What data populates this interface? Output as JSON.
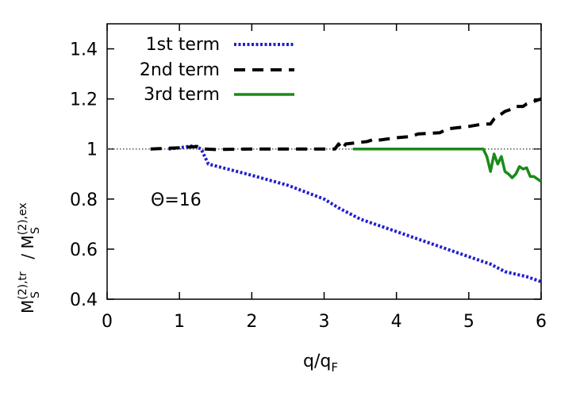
{
  "chart_data": {
    "type": "line",
    "title": "",
    "xlabel": "q/q",
    "xlabel_sub": "F",
    "ylabel": {
      "m1": "M",
      "sup1": "(2),tr",
      "sub1": "S",
      "sep": " / ",
      "m2": "M",
      "sup2": "(2),ex",
      "sub2": "S"
    },
    "annotation": "Θ=16",
    "xlim": [
      0,
      6
    ],
    "ylim": [
      0.4,
      1.5
    ],
    "xticks": [
      0,
      1,
      2,
      3,
      4,
      5,
      6
    ],
    "xtick_labels": [
      "0",
      "1",
      "2",
      "3",
      "4",
      "5",
      "6"
    ],
    "yticks": [
      0.4,
      0.6,
      0.8,
      1.0,
      1.2,
      1.4
    ],
    "ytick_labels": [
      "0.4",
      "0.6",
      "0.8",
      "1",
      "1.2",
      "1.4"
    ],
    "grid": false,
    "legend_position": "top-left",
    "reference_line": {
      "y": 1.0,
      "color": "#555555"
    },
    "series": [
      {
        "name": "1st term",
        "color": "#2020d0",
        "style": "dotted",
        "points": [
          [
            0.85,
            1.0
          ],
          [
            1.0,
            1.005
          ],
          [
            1.2,
            1.013
          ],
          [
            1.3,
            1.0
          ],
          [
            1.4,
            0.94
          ],
          [
            1.6,
            0.925
          ],
          [
            2.0,
            0.895
          ],
          [
            2.5,
            0.855
          ],
          [
            3.0,
            0.8
          ],
          [
            3.2,
            0.765
          ],
          [
            3.3,
            0.75
          ],
          [
            3.5,
            0.72
          ],
          [
            4.0,
            0.67
          ],
          [
            4.5,
            0.62
          ],
          [
            5.0,
            0.57
          ],
          [
            5.3,
            0.54
          ],
          [
            5.5,
            0.51
          ],
          [
            5.8,
            0.49
          ],
          [
            6.0,
            0.47
          ]
        ]
      },
      {
        "name": "2nd term",
        "color": "#000000",
        "style": "dashed",
        "points": [
          [
            0.6,
            1.0
          ],
          [
            1.0,
            1.005
          ],
          [
            1.25,
            1.01
          ],
          [
            1.35,
            1.0
          ],
          [
            1.5,
            0.998
          ],
          [
            2.0,
            1.0
          ],
          [
            3.0,
            1.0
          ],
          [
            3.15,
            1.0
          ],
          [
            3.2,
            1.02
          ],
          [
            3.25,
            1.0
          ],
          [
            3.3,
            1.02
          ],
          [
            3.6,
            1.03
          ],
          [
            3.7,
            1.04
          ],
          [
            3.75,
            1.035
          ],
          [
            4.0,
            1.045
          ],
          [
            4.2,
            1.05
          ],
          [
            4.3,
            1.06
          ],
          [
            4.6,
            1.065
          ],
          [
            4.7,
            1.08
          ],
          [
            5.0,
            1.09
          ],
          [
            5.2,
            1.1
          ],
          [
            5.3,
            1.1
          ],
          [
            5.35,
            1.12
          ],
          [
            5.45,
            1.14
          ],
          [
            5.5,
            1.15
          ],
          [
            5.6,
            1.16
          ],
          [
            5.65,
            1.17
          ],
          [
            5.75,
            1.17
          ],
          [
            5.8,
            1.18
          ],
          [
            6.0,
            1.2
          ]
        ]
      },
      {
        "name": "3rd term",
        "color": "#1a8a1a",
        "style": "solid",
        "points": [
          [
            3.4,
            1.0
          ],
          [
            4.0,
            1.0
          ],
          [
            5.0,
            1.0
          ],
          [
            5.2,
            1.0
          ],
          [
            5.25,
            0.97
          ],
          [
            5.3,
            0.91
          ],
          [
            5.35,
            0.98
          ],
          [
            5.4,
            0.94
          ],
          [
            5.45,
            0.97
          ],
          [
            5.5,
            0.91
          ],
          [
            5.55,
            0.9
          ],
          [
            5.6,
            0.885
          ],
          [
            5.65,
            0.9
          ],
          [
            5.7,
            0.93
          ],
          [
            5.75,
            0.92
          ],
          [
            5.8,
            0.925
          ],
          [
            5.85,
            0.89
          ],
          [
            5.9,
            0.89
          ],
          [
            5.95,
            0.88
          ],
          [
            6.0,
            0.87
          ]
        ]
      }
    ]
  }
}
